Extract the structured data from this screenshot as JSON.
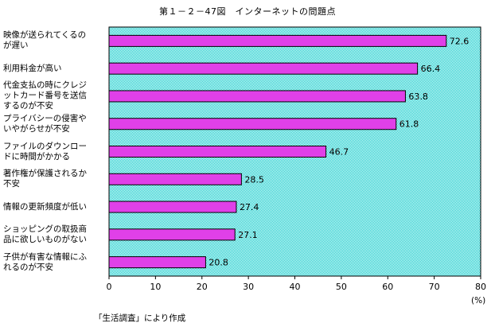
{
  "chart_data": {
    "type": "bar",
    "orientation": "horizontal",
    "title": "第１－２－47図　インターネットの問題点",
    "categories": [
      "映像が送られてくるのが遅い",
      "利用料金が高い",
      "代金支払の時にクレジットカード番号を送信するのが不安",
      "プライバシーの侵害やいやがらせが不安",
      "ファイルのダウンロードに時間がかかる",
      "著作権が保護されるか不安",
      "情報の更新頻度が低い",
      "ショッピングの取扱商品に欲しいものがない",
      "子供が有害な情報にふれるのが不安"
    ],
    "category_display": [
      "映像が送られてくるの\nが遅い",
      "利用料金が高い",
      "代金支払の時にクレジ\nットカード番号を送信\nするのが不安",
      "プライバシーの侵害や\nいやがらせが不安",
      "ファイルのダウンロー\nドに時間がかかる",
      "著作権が保護されるか\n不安",
      "情報の更新頻度が低い",
      "ショッピングの取扱商\n品に欲しいものがない",
      "子供が有害な情報にふ\nれるのが不安"
    ],
    "values": [
      72.6,
      66.4,
      63.8,
      61.8,
      46.7,
      28.5,
      27.4,
      27.1,
      20.8
    ],
    "value_labels": [
      "72.6",
      "66.4",
      "63.8",
      "61.8",
      "46.7",
      "28.5",
      "27.4",
      "27.1",
      "20.8"
    ],
    "xlim": [
      0,
      80
    ],
    "xticks": [
      0,
      10,
      20,
      30,
      40,
      50,
      60,
      70,
      80
    ],
    "xlabel": "(%)",
    "grid": false,
    "colors": {
      "bar_fill": "#e040e8",
      "bar_stroke": "#000000",
      "plot_bg": "#bff6f6",
      "plot_border": "#000000"
    }
  },
  "source_note": "「生活調査」により作成"
}
